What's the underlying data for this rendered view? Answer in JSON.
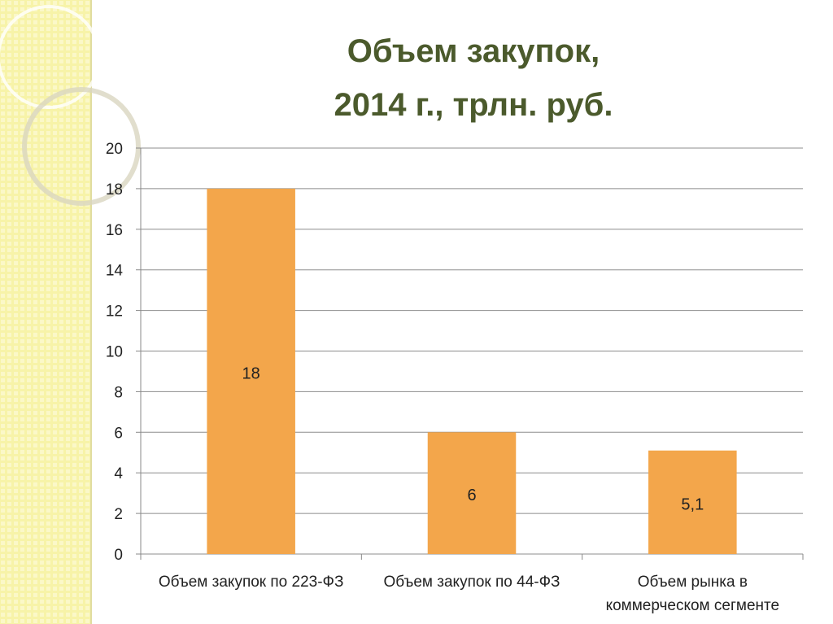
{
  "chart_data": {
    "type": "bar",
    "title": [
      "Объем закупок,",
      "2014 г., трлн. руб."
    ],
    "categories": [
      "Объем закупок по 223-ФЗ",
      "Объем закупок по 44-ФЗ",
      "Объем рынка в коммерческом сегменте"
    ],
    "values": [
      18,
      6,
      5.1
    ],
    "value_labels": [
      "18",
      "6",
      "5,1"
    ],
    "color": "#f3a64b",
    "ylim": [
      0,
      20
    ],
    "yticks": [
      0,
      2,
      4,
      6,
      8,
      10,
      12,
      14,
      16,
      18,
      20
    ],
    "grid": true
  }
}
